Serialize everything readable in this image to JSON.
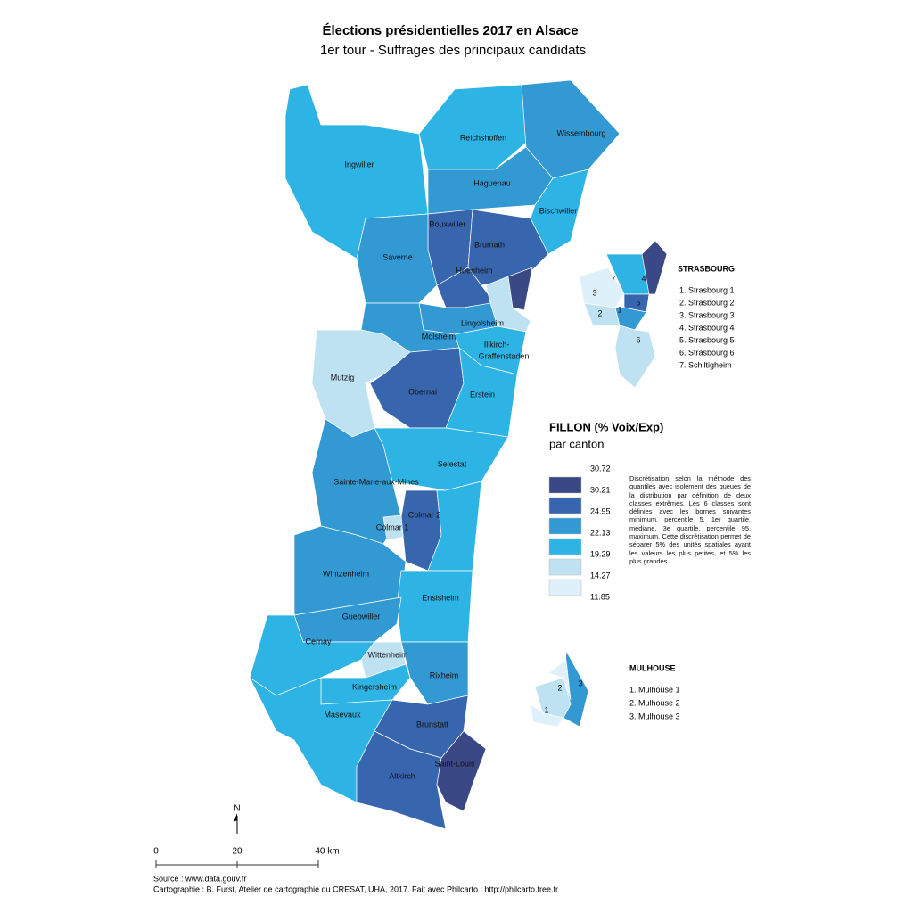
{
  "title": "Élections présidentielles 2017 en Alsace",
  "subtitle": "1er tour - Suffrages des principaux candidats",
  "cantons": [
    "Reichshoffen",
    "Wissembourg",
    "Ingwiller",
    "Haguenau",
    "Bischwiller",
    "Bouxwiller",
    "Saverne",
    "Brumath",
    "Hoenheim",
    "Lingolsheim",
    "Illkirch-",
    "Graffenstaden",
    "Molsheim",
    "Mutzig",
    "Obernai",
    "Erstein",
    "Selestat",
    "Sainte-Marie-aux-Mines",
    "Colmar 2",
    "Colmar 1",
    "Wintzenheim",
    "Ensisheim",
    "Guebwiller",
    "Cernay",
    "Wittenheim",
    "Rixheim",
    "Kingersheim",
    "Masevaux",
    "Brunstatt",
    "Saint-Louis",
    "Altkirch"
  ],
  "strasbourg": {
    "title": "STRASBOURG",
    "numbers": [
      "7",
      "4",
      "3",
      "5",
      "2",
      "1",
      "6"
    ],
    "items": [
      "1. Strasbourg 1",
      "2. Strasbourg 2",
      "3. Strasbourg 3",
      "4. Strasbourg 4",
      "5. Strasbourg 5",
      "6. Strasbourg 6",
      "7. Schiltigheim"
    ]
  },
  "mulhouse": {
    "title": "MULHOUSE",
    "numbers": [
      "3",
      "2",
      "1"
    ],
    "items": [
      "1. Mulhouse 1",
      "2. Mulhouse 2",
      "3. Mulhouse 3"
    ]
  },
  "legend": {
    "title": "FILLON (% Voix/Exp)",
    "subtitle": "par canton",
    "breaks": [
      30.72,
      30.21,
      24.95,
      22.13,
      19.29,
      14.27,
      11.85
    ],
    "colors": [
      "#3b4886",
      "#3866ae",
      "#3399d3",
      "#2db4e4",
      "#bfe2f3",
      "#def0f9"
    ],
    "note": "Discrétisation selon la méthode des quantiles avec isolement des queues de la distribution par définition de deux classes extrêmes. Les 6 classes sont définies avec les bornes suivantes minimum, percentile 5, 1er quartile, médiane, 3e quartile, percentile 95, maximum. Cette discrétisation permet de séparer 5% des unités spatiales ayant les valeurs les plus petites, et 5% les plus grandes."
  },
  "scale": {
    "north": "N",
    "labels": [
      "0",
      "20",
      "40 km"
    ]
  },
  "source": "Source : www.data.gouv.fr",
  "credit": "Cartographie : B. Furst, Atelier de cartographie du CRESAT, UHA, 2017. Fait avec Philcarto : http://philcarto.free.fr"
}
